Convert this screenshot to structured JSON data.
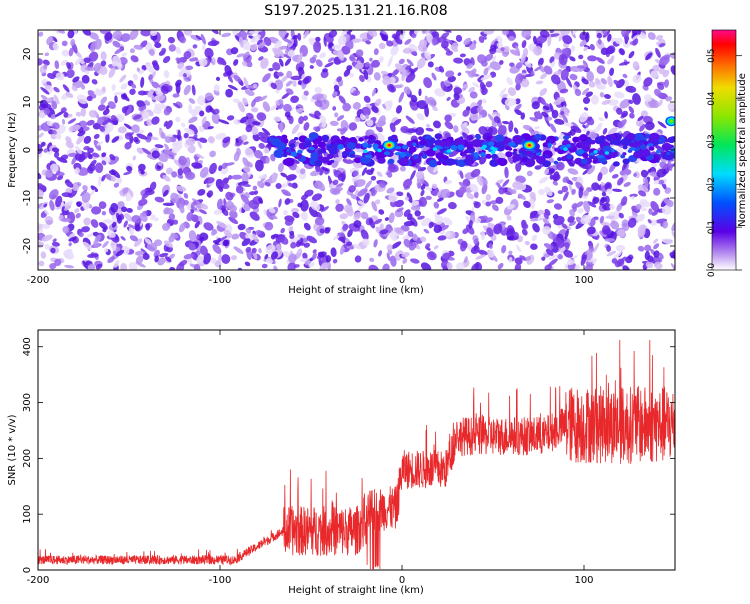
{
  "title": "S197.2025.131.21.16.R08",
  "chart_data": [
    {
      "type": "heatmap",
      "title": "S197.2025.131.21.16.R08",
      "xlabel": "Height of straight line (km)",
      "ylabel": "Frequency (Hz)",
      "xlim": [
        -200,
        150
      ],
      "ylim": [
        -25,
        25
      ],
      "xticks": [
        -200,
        -100,
        0,
        100
      ],
      "yticks": [
        -20,
        -10,
        0,
        10,
        20
      ],
      "colorbar": {
        "label": "Normalized spectral amplitude",
        "range": [
          0,
          0.56
        ],
        "ticks": [
          0.0,
          0.1,
          0.2,
          0.3,
          0.4,
          0.5
        ],
        "tick_labels": [
          "0.0",
          "0.1",
          "0.2",
          "0.3",
          "0.4",
          "0.5"
        ]
      },
      "features": {
        "signal_band_hz": 0,
        "signal_band_start_km": -75,
        "peaks": [
          {
            "x": -7,
            "y": 1,
            "amp": 0.52
          },
          {
            "x": 70,
            "y": 1,
            "amp": 0.5
          },
          {
            "x": 148,
            "y": 6,
            "amp": 0.35
          }
        ]
      },
      "grid": false
    },
    {
      "type": "line",
      "xlabel": "Height of straight line (km)",
      "ylabel": "SNR (10 * v/v)",
      "xlim": [
        -200,
        150
      ],
      "ylim": [
        0,
        430
      ],
      "xticks": [
        -200,
        -100,
        0,
        100
      ],
      "yticks": [
        0,
        100,
        200,
        300,
        400
      ],
      "series": [
        {
          "color": "#e8282a",
          "segments": [
            {
              "x": [
                -200,
                -65
              ],
              "mean": 18,
              "spread": 8
            },
            {
              "x": [
                -65,
                -15
              ],
              "mean": 70,
              "spread": 45
            },
            {
              "x": [
                -15,
                0
              ],
              "mean": 110,
              "spread": 40
            },
            {
              "x": [
                0,
                30
              ],
              "mean": 180,
              "spread": 35
            },
            {
              "x": [
                30,
                90
              ],
              "mean": 240,
              "spread": 35
            },
            {
              "x": [
                90,
                150
              ],
              "mean": 260,
              "spread": 70
            }
          ]
        }
      ],
      "grid": false
    }
  ]
}
